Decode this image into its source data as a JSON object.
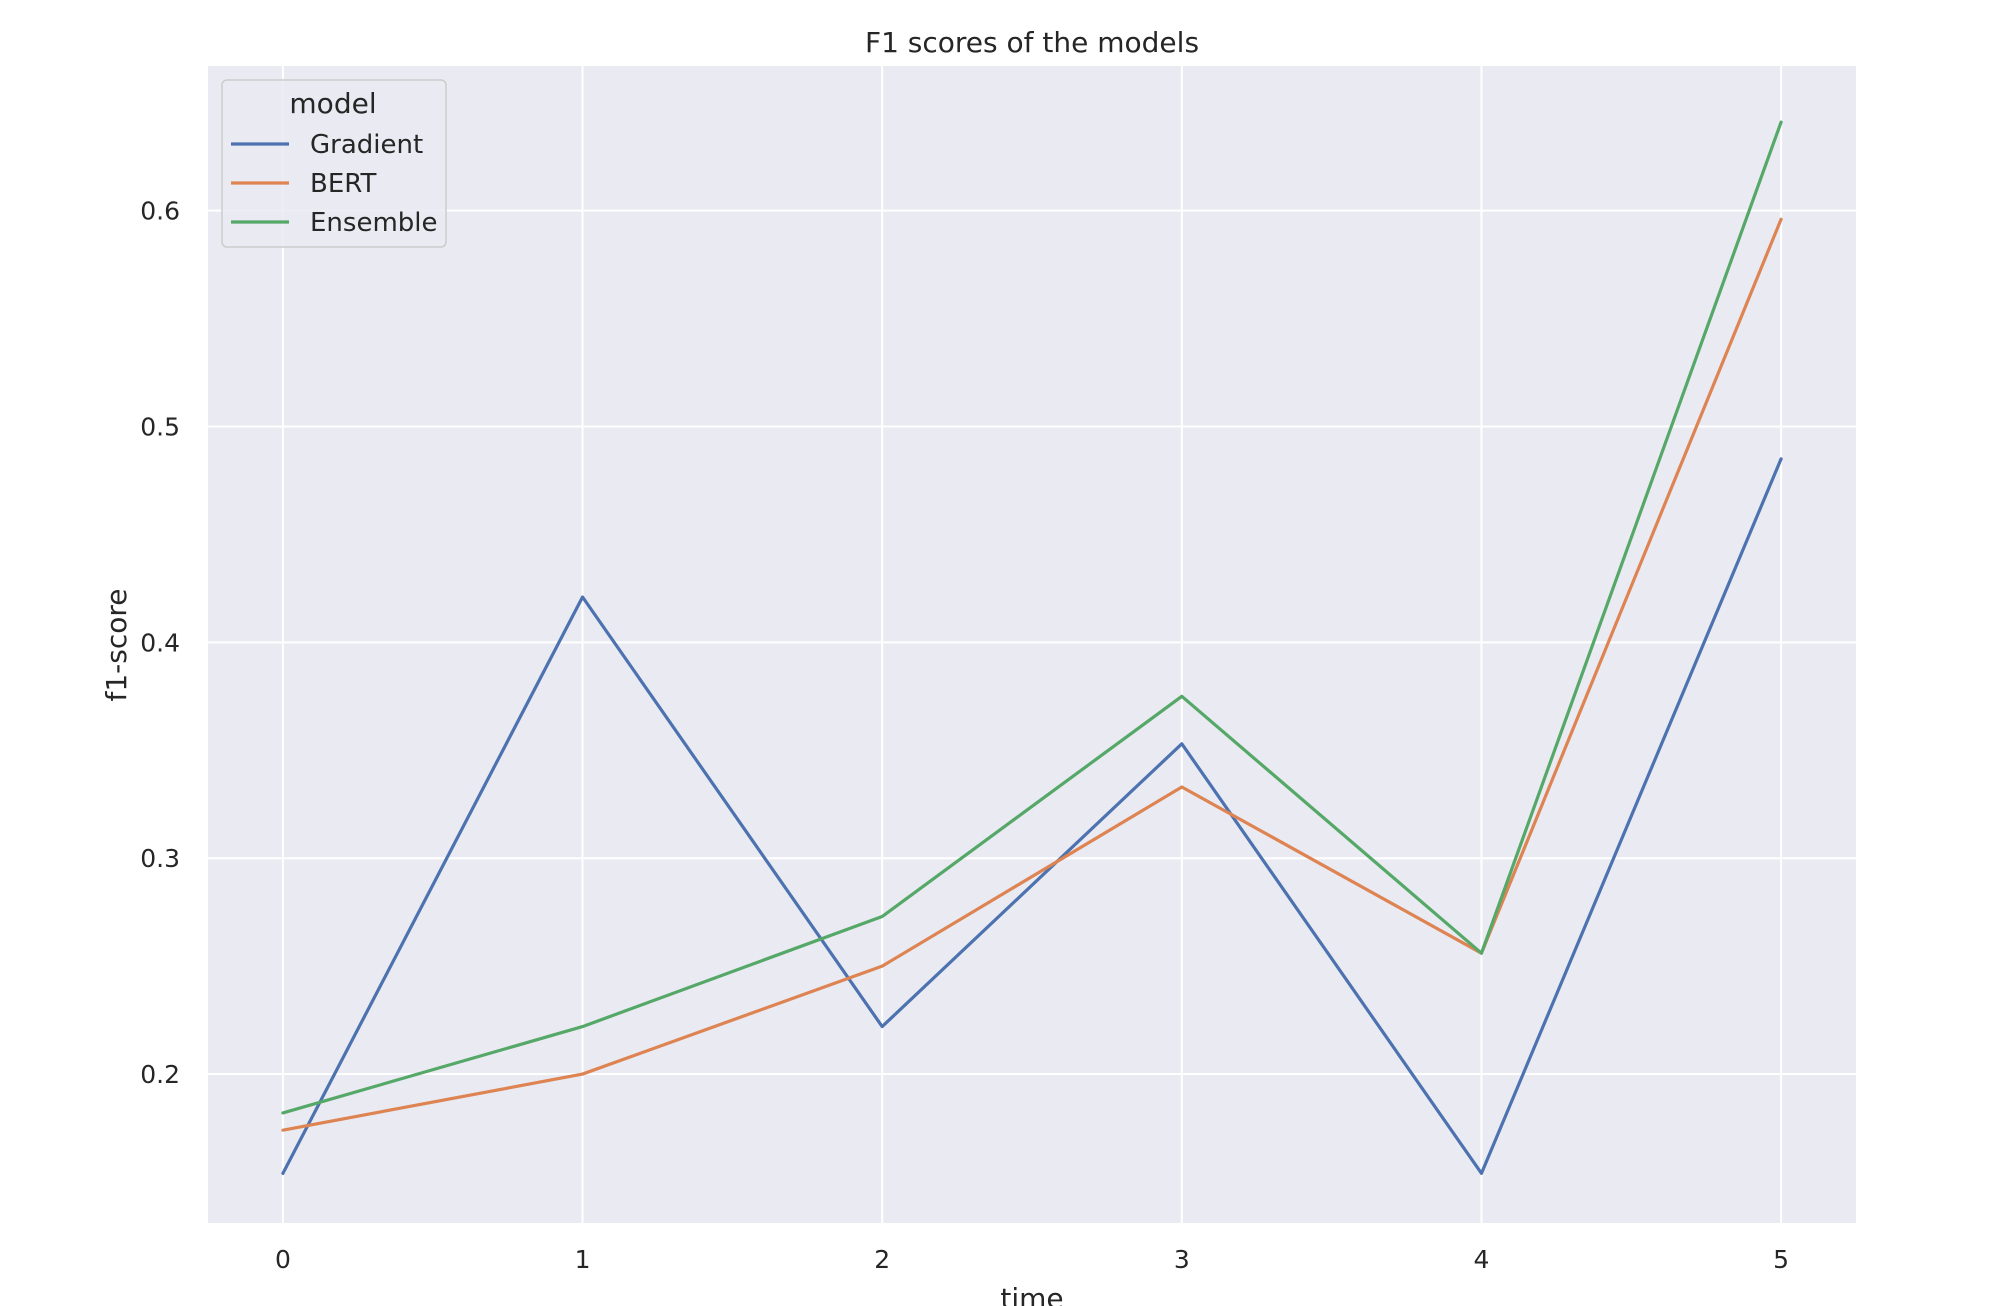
{
  "chart_data": {
    "type": "line",
    "title": "F1 scores of the models",
    "xlabel": "time",
    "ylabel": "f1-score",
    "x": [
      0,
      1,
      2,
      3,
      4,
      5
    ],
    "xlim": [
      -0.25,
      5.25
    ],
    "ylim": [
      0.131,
      0.667
    ],
    "x_ticks": [
      0,
      1,
      2,
      3,
      4,
      5
    ],
    "y_ticks": [
      0.2,
      0.3,
      0.4,
      0.5,
      0.6
    ],
    "grid": true,
    "legend": {
      "title": "model",
      "placement": "top-left"
    },
    "series": [
      {
        "name": "Gradient",
        "color": "#4c72b0",
        "values": [
          0.154,
          0.421,
          0.222,
          0.353,
          0.154,
          0.485
        ]
      },
      {
        "name": "BERT",
        "color": "#dd8452",
        "values": [
          0.174,
          0.2,
          0.25,
          0.333,
          0.256,
          0.596
        ]
      },
      {
        "name": "Ensemble",
        "color": "#55a868",
        "values": [
          0.182,
          0.222,
          0.273,
          0.375,
          0.256,
          0.641
        ]
      }
    ]
  },
  "style": {
    "plot_background": "#eaeaf2",
    "grid_color": "#ffffff",
    "text_color": "#262626"
  }
}
